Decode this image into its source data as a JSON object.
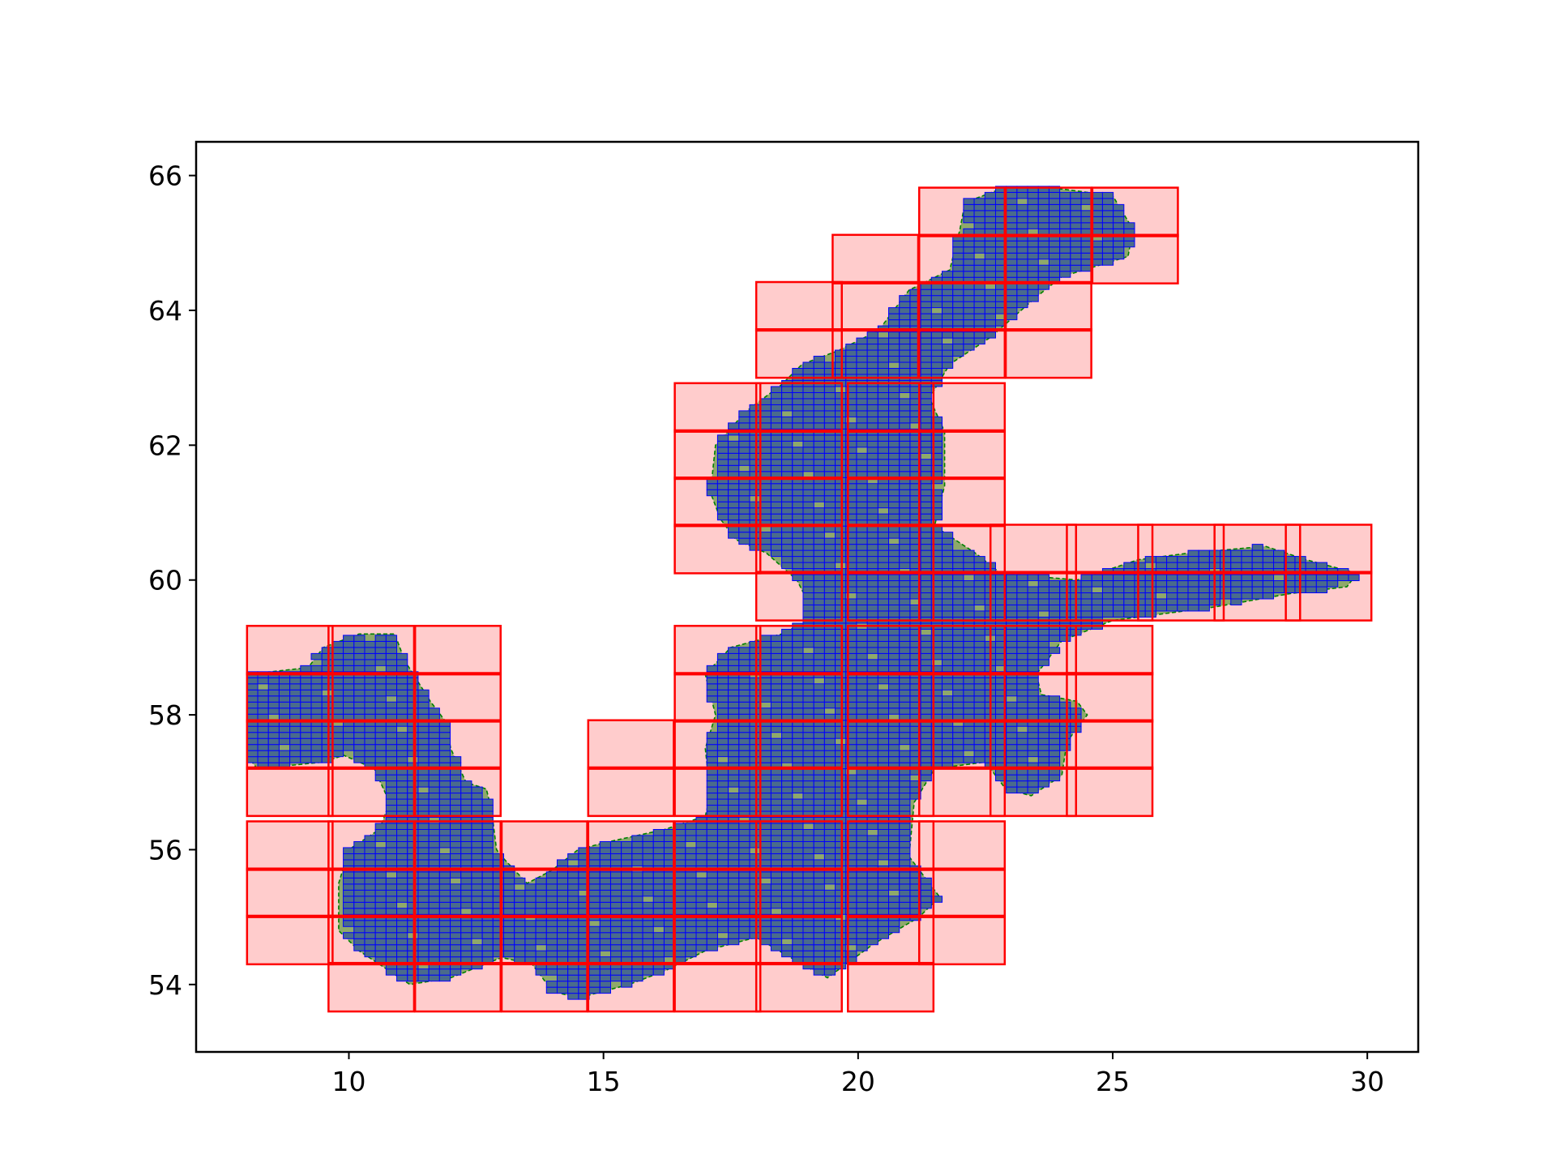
{
  "chart_data": {
    "type": "scatter",
    "title": "",
    "xlabel": "",
    "ylabel": "",
    "xlim": [
      7,
      31
    ],
    "ylim": [
      53,
      66.5
    ],
    "x_ticks": [
      10,
      15,
      20,
      25,
      30
    ],
    "y_ticks": [
      54,
      56,
      58,
      60,
      62,
      64,
      66
    ],
    "grid": false,
    "legend": "none",
    "colors": {
      "coarse_cell_fill": "#ffcccc",
      "coarse_cell_edge": "#ff0000",
      "region_fill": "#8fa96a",
      "region_edge": "#008000",
      "fine_cell_fill": "#4a6b8c",
      "fine_cell_edge": "#0000ff"
    },
    "series": [
      {
        "kind": "coarse_grid",
        "cell_width": 1.68,
        "cell_height": 0.72,
        "cells": [
          [
            21.2,
            65.1
          ],
          [
            22.9,
            65.1
          ],
          [
            24.6,
            65.1
          ],
          [
            21.2,
            64.4
          ],
          [
            22.9,
            64.4
          ],
          [
            24.6,
            64.4
          ],
          [
            19.5,
            64.4
          ],
          [
            19.5,
            63.7
          ],
          [
            21.2,
            63.7
          ],
          [
            22.9,
            63.7
          ],
          [
            18.0,
            63.7
          ],
          [
            18.0,
            63.0
          ],
          [
            19.5,
            63.0
          ],
          [
            21.2,
            63.0
          ],
          [
            22.9,
            63.0
          ],
          [
            16.4,
            62.2
          ],
          [
            18.0,
            62.2
          ],
          [
            19.8,
            62.2
          ],
          [
            21.2,
            62.2
          ],
          [
            16.4,
            61.5
          ],
          [
            18.0,
            61.5
          ],
          [
            19.8,
            61.5
          ],
          [
            21.2,
            61.5
          ],
          [
            16.4,
            60.8
          ],
          [
            18.0,
            60.8
          ],
          [
            19.8,
            60.8
          ],
          [
            21.2,
            60.8
          ],
          [
            16.4,
            60.1
          ],
          [
            18.0,
            60.1
          ],
          [
            19.8,
            60.1
          ],
          [
            21.2,
            60.1
          ],
          [
            22.6,
            60.1
          ],
          [
            24.1,
            60.1
          ],
          [
            25.5,
            60.1
          ],
          [
            27.0,
            60.1
          ],
          [
            28.4,
            60.1
          ],
          [
            18.0,
            59.4
          ],
          [
            19.8,
            59.4
          ],
          [
            21.2,
            59.4
          ],
          [
            22.6,
            59.4
          ],
          [
            24.1,
            59.4
          ],
          [
            25.5,
            59.4
          ],
          [
            27.0,
            59.4
          ],
          [
            28.4,
            59.4
          ],
          [
            16.4,
            58.6
          ],
          [
            18.0,
            58.6
          ],
          [
            19.8,
            58.6
          ],
          [
            21.2,
            58.6
          ],
          [
            22.6,
            58.6
          ],
          [
            24.1,
            58.6
          ],
          [
            16.4,
            57.9
          ],
          [
            18.0,
            57.9
          ],
          [
            19.8,
            57.9
          ],
          [
            21.2,
            57.9
          ],
          [
            22.6,
            57.9
          ],
          [
            24.1,
            57.9
          ],
          [
            14.7,
            57.2
          ],
          [
            16.4,
            57.2
          ],
          [
            18.0,
            57.2
          ],
          [
            19.8,
            57.2
          ],
          [
            21.2,
            57.2
          ],
          [
            22.6,
            57.2
          ],
          [
            24.1,
            57.2
          ],
          [
            14.7,
            56.5
          ],
          [
            16.4,
            56.5
          ],
          [
            18.0,
            56.5
          ],
          [
            19.8,
            56.5
          ],
          [
            21.2,
            56.5
          ],
          [
            22.6,
            56.5
          ],
          [
            24.1,
            56.5
          ],
          [
            13.0,
            55.7
          ],
          [
            14.7,
            55.7
          ],
          [
            16.4,
            55.7
          ],
          [
            18.0,
            55.7
          ],
          [
            19.8,
            55.7
          ],
          [
            21.2,
            55.7
          ],
          [
            13.0,
            55.0
          ],
          [
            14.7,
            55.0
          ],
          [
            16.4,
            55.0
          ],
          [
            18.0,
            55.0
          ],
          [
            19.8,
            55.0
          ],
          [
            21.2,
            55.0
          ],
          [
            13.0,
            54.3
          ],
          [
            14.7,
            54.3
          ],
          [
            16.4,
            54.3
          ],
          [
            18.0,
            54.3
          ],
          [
            19.8,
            54.3
          ],
          [
            21.2,
            54.3
          ],
          [
            9.6,
            53.6
          ],
          [
            11.3,
            53.6
          ],
          [
            13.0,
            53.6
          ],
          [
            14.7,
            53.6
          ],
          [
            16.4,
            53.6
          ],
          [
            18.0,
            53.6
          ],
          [
            19.8,
            53.6
          ],
          [
            8.0,
            58.6
          ],
          [
            9.6,
            58.6
          ],
          [
            11.3,
            58.6
          ],
          [
            8.0,
            57.9
          ],
          [
            9.6,
            57.9
          ],
          [
            11.3,
            57.9
          ],
          [
            8.0,
            57.2
          ],
          [
            9.6,
            57.2
          ],
          [
            11.3,
            57.2
          ],
          [
            8.0,
            56.5
          ],
          [
            9.6,
            56.5
          ],
          [
            11.3,
            56.5
          ],
          [
            8.0,
            55.7
          ],
          [
            9.6,
            55.7
          ],
          [
            11.3,
            55.7
          ],
          [
            8.0,
            55.0
          ],
          [
            9.6,
            55.0
          ],
          [
            11.3,
            55.0
          ],
          [
            8.0,
            54.3
          ],
          [
            9.6,
            54.3
          ],
          [
            11.3,
            54.3
          ],
          [
            9.6,
            54.3
          ]
        ]
      },
      {
        "kind": "region_polygon",
        "points": [
          [
            8.0,
            58.6
          ],
          [
            9.2,
            58.7
          ],
          [
            9.5,
            59.0
          ],
          [
            10.2,
            59.2
          ],
          [
            10.9,
            59.2
          ],
          [
            11.1,
            58.8
          ],
          [
            11.6,
            58.2
          ],
          [
            11.9,
            57.9
          ],
          [
            12.0,
            57.5
          ],
          [
            12.3,
            57.0
          ],
          [
            12.7,
            56.9
          ],
          [
            12.8,
            56.6
          ],
          [
            12.9,
            56.0
          ],
          [
            13.0,
            55.9
          ],
          [
            13.5,
            55.5
          ],
          [
            14.0,
            55.7
          ],
          [
            14.5,
            56.0
          ],
          [
            15.0,
            56.1
          ],
          [
            16.2,
            56.3
          ],
          [
            17.0,
            56.5
          ],
          [
            17.1,
            56.8
          ],
          [
            17.0,
            57.5
          ],
          [
            17.2,
            58.0
          ],
          [
            17.0,
            58.6
          ],
          [
            17.5,
            59.0
          ],
          [
            18.5,
            59.2
          ],
          [
            19.0,
            59.4
          ],
          [
            19.0,
            59.7
          ],
          [
            18.8,
            60.0
          ],
          [
            18.2,
            60.4
          ],
          [
            17.6,
            60.6
          ],
          [
            17.3,
            60.9
          ],
          [
            17.1,
            61.3
          ],
          [
            17.2,
            62.0
          ],
          [
            17.8,
            62.5
          ],
          [
            18.5,
            62.9
          ],
          [
            18.9,
            63.2
          ],
          [
            19.6,
            63.4
          ],
          [
            20.4,
            63.7
          ],
          [
            21.0,
            64.3
          ],
          [
            21.8,
            64.6
          ],
          [
            22.0,
            65.2
          ],
          [
            22.1,
            65.6
          ],
          [
            22.8,
            65.8
          ],
          [
            24.0,
            65.8
          ],
          [
            25.0,
            65.7
          ],
          [
            25.4,
            65.2
          ],
          [
            25.3,
            64.8
          ],
          [
            24.0,
            64.5
          ],
          [
            23.5,
            64.2
          ],
          [
            22.6,
            63.6
          ],
          [
            21.8,
            63.2
          ],
          [
            21.4,
            62.7
          ],
          [
            21.7,
            62.2
          ],
          [
            21.7,
            61.4
          ],
          [
            21.5,
            60.8
          ],
          [
            22.3,
            60.4
          ],
          [
            22.8,
            60.1
          ],
          [
            24.3,
            60.0
          ],
          [
            25.5,
            60.3
          ],
          [
            26.5,
            60.4
          ],
          [
            28.0,
            60.5
          ],
          [
            28.8,
            60.3
          ],
          [
            29.8,
            60.1
          ],
          [
            29.6,
            59.9
          ],
          [
            28.5,
            59.8
          ],
          [
            27.0,
            59.6
          ],
          [
            25.0,
            59.4
          ],
          [
            24.0,
            59.1
          ],
          [
            23.5,
            58.6
          ],
          [
            23.6,
            58.3
          ],
          [
            24.3,
            58.2
          ],
          [
            24.5,
            58.0
          ],
          [
            24.1,
            57.6
          ],
          [
            24.0,
            57.1
          ],
          [
            23.4,
            56.8
          ],
          [
            22.9,
            56.9
          ],
          [
            22.5,
            57.3
          ],
          [
            21.5,
            57.2
          ],
          [
            21.1,
            56.7
          ],
          [
            21.0,
            55.9
          ],
          [
            21.6,
            55.3
          ],
          [
            21.2,
            55.0
          ],
          [
            20.3,
            54.6
          ],
          [
            19.4,
            54.1
          ],
          [
            18.9,
            54.3
          ],
          [
            18.0,
            54.7
          ],
          [
            17.0,
            54.5
          ],
          [
            16.2,
            54.2
          ],
          [
            15.5,
            54.0
          ],
          [
            14.5,
            53.8
          ],
          [
            14.0,
            53.9
          ],
          [
            13.6,
            54.3
          ],
          [
            13.0,
            54.4
          ],
          [
            12.0,
            54.1
          ],
          [
            11.2,
            54.0
          ],
          [
            10.6,
            54.3
          ],
          [
            10.2,
            54.5
          ],
          [
            9.8,
            54.8
          ],
          [
            9.8,
            55.5
          ],
          [
            10.0,
            56.0
          ],
          [
            10.6,
            56.3
          ],
          [
            10.8,
            56.7
          ],
          [
            10.5,
            57.2
          ],
          [
            9.9,
            57.4
          ],
          [
            9.5,
            57.3
          ],
          [
            8.2,
            57.2
          ],
          [
            8.0,
            57.4
          ]
        ]
      }
    ]
  }
}
